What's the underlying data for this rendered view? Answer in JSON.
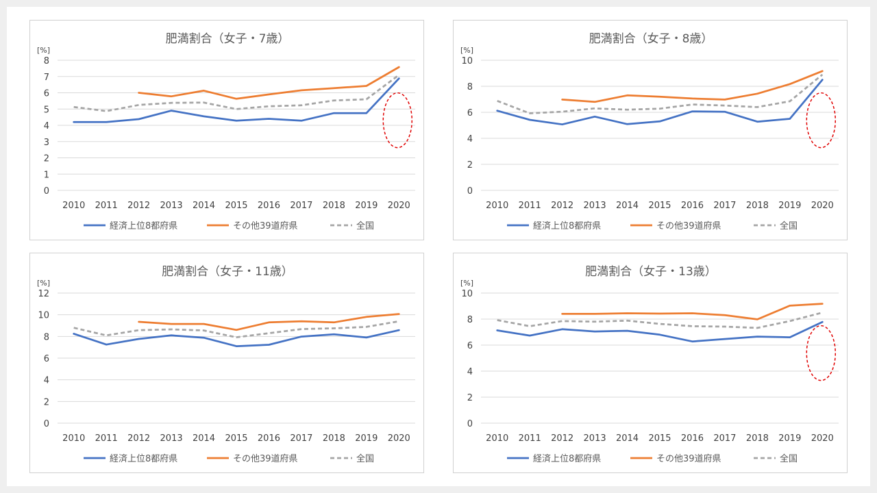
{
  "colors": {
    "series": [
      "#4472c4",
      "#ed7d31",
      "#a5a5a5"
    ],
    "grid": "#d9d9d9",
    "highlight": "#e00000"
  },
  "chart_data": [
    {
      "type": "line",
      "title": "肥満割合（女子・7歳）",
      "ylabel": "[%]",
      "ylim": [
        0,
        8
      ],
      "yticks": [
        0,
        1,
        2,
        3,
        4,
        5,
        6,
        7,
        8
      ],
      "x": [
        "2010",
        "2011",
        "2012",
        "2013",
        "2014",
        "2015",
        "2016",
        "2017",
        "2018",
        "2019",
        "2020"
      ],
      "grid": true,
      "legend_position": "bottom",
      "highlight_last": true,
      "series": [
        {
          "name": "経済上位8都府県",
          "style": "solid",
          "values": [
            4.2,
            4.2,
            4.38,
            4.9,
            4.55,
            4.28,
            4.4,
            4.28,
            4.75,
            4.75,
            6.88
          ]
        },
        {
          "name": "その他39道府県",
          "style": "solid",
          "values": [
            null,
            null,
            6.0,
            5.78,
            6.13,
            5.63,
            5.9,
            6.15,
            6.28,
            6.42,
            7.58
          ]
        },
        {
          "name": "全国",
          "style": "dashed",
          "values": [
            5.13,
            4.87,
            5.25,
            5.38,
            5.4,
            5.0,
            5.17,
            5.23,
            5.53,
            5.6,
            7.1
          ]
        }
      ]
    },
    {
      "type": "line",
      "title": "肥満割合（女子・8歳）",
      "ylabel": "[%]",
      "ylim": [
        0,
        10
      ],
      "yticks": [
        0,
        2,
        4,
        6,
        8,
        10
      ],
      "x": [
        "2010",
        "2011",
        "2012",
        "2013",
        "2014",
        "2015",
        "2016",
        "2017",
        "2018",
        "2019",
        "2020"
      ],
      "grid": true,
      "legend_position": "bottom",
      "highlight_last": true,
      "series": [
        {
          "name": "経済上位8都府県",
          "style": "solid",
          "values": [
            6.12,
            5.42,
            5.07,
            5.67,
            5.09,
            5.3,
            6.07,
            6.04,
            5.28,
            5.5,
            8.5
          ]
        },
        {
          "name": "その他39道府県",
          "style": "solid",
          "values": [
            null,
            null,
            6.98,
            6.8,
            7.3,
            7.2,
            7.06,
            6.98,
            7.43,
            8.17,
            9.17
          ]
        },
        {
          "name": "全国",
          "style": "dashed",
          "values": [
            6.88,
            5.92,
            6.05,
            6.3,
            6.2,
            6.28,
            6.6,
            6.52,
            6.4,
            6.85,
            8.9
          ]
        }
      ]
    },
    {
      "type": "line",
      "title": "肥満割合（女子・11歳）",
      "ylabel": "[%]",
      "ylim": [
        0,
        12
      ],
      "yticks": [
        0,
        2,
        4,
        6,
        8,
        10,
        12
      ],
      "x": [
        "2010",
        "2011",
        "2012",
        "2013",
        "2014",
        "2015",
        "2016",
        "2017",
        "2018",
        "2019",
        "2020"
      ],
      "grid": true,
      "legend_position": "bottom",
      "highlight_last": false,
      "series": [
        {
          "name": "経済上位8都府県",
          "style": "solid",
          "values": [
            8.25,
            7.25,
            7.77,
            8.1,
            7.88,
            7.1,
            7.23,
            7.98,
            8.2,
            7.9,
            8.58
          ]
        },
        {
          "name": "その他39道府県",
          "style": "solid",
          "values": [
            null,
            null,
            9.35,
            9.15,
            9.15,
            8.6,
            9.3,
            9.4,
            9.3,
            9.8,
            10.07
          ]
        },
        {
          "name": "全国",
          "style": "dashed",
          "values": [
            8.8,
            8.1,
            8.58,
            8.65,
            8.55,
            7.92,
            8.3,
            8.68,
            8.75,
            8.88,
            9.4
          ]
        }
      ]
    },
    {
      "type": "line",
      "title": "肥満割合（女子・13歳）",
      "ylabel": "[%]",
      "ylim": [
        0,
        10
      ],
      "yticks": [
        0,
        2,
        4,
        6,
        8,
        10
      ],
      "x": [
        "2010",
        "2011",
        "2012",
        "2013",
        "2014",
        "2015",
        "2016",
        "2017",
        "2018",
        "2019",
        "2020"
      ],
      "grid": true,
      "legend_position": "bottom",
      "highlight_last": true,
      "series": [
        {
          "name": "経済上位8都府県",
          "style": "solid",
          "values": [
            7.13,
            6.73,
            7.22,
            7.05,
            7.1,
            6.8,
            6.28,
            6.47,
            6.65,
            6.6,
            7.78
          ]
        },
        {
          "name": "その他39道府県",
          "style": "solid",
          "values": [
            null,
            null,
            8.4,
            8.4,
            8.45,
            8.42,
            8.45,
            8.3,
            7.98,
            9.03,
            9.18
          ]
        },
        {
          "name": "全国",
          "style": "dashed",
          "values": [
            7.92,
            7.45,
            7.85,
            7.8,
            7.88,
            7.63,
            7.45,
            7.42,
            7.32,
            7.85,
            8.5
          ]
        }
      ]
    }
  ]
}
